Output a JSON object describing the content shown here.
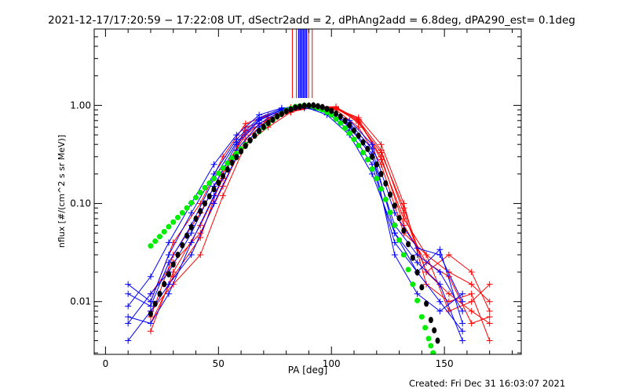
{
  "chart_data": {
    "type": "line",
    "title": "2021-12-17/17:20:59 − 17:22:08 UT, dSectr2add = 2, dPhAng2add = 6.8deg, dPA290_est=  0.1deg",
    "xlabel": "PA [deg]",
    "ylabel": "nflux [#/(cm^2 s sr MeV)]",
    "footer": "Created: Fri Dec 31 16:03:07 2021",
    "xlim": [
      -5,
      184
    ],
    "ylim": [
      0.0029,
      6
    ],
    "yscale": "log",
    "x_ticks": [
      {
        "v": 0,
        "label": "0"
      },
      {
        "v": 50,
        "label": "50"
      },
      {
        "v": 100,
        "label": "100"
      },
      {
        "v": 150,
        "label": "150"
      }
    ],
    "y_ticks": [
      {
        "v": 0.01,
        "label": "0.01"
      },
      {
        "v": 0.1,
        "label": "0.10"
      },
      {
        "v": 1,
        "label": "1.00"
      }
    ],
    "colors": {
      "red": "#ff0000",
      "blue": "#0000ff",
      "green": "#00ee00",
      "black": "#000000"
    },
    "vertical_markers": {
      "red": [
        82.7,
        84.5,
        89.9,
        91.5
      ],
      "blue": [
        85.5,
        86.2,
        86.9,
        87.6,
        88.3,
        89.0
      ]
    },
    "blue_pa": [
      10,
      20,
      28,
      38,
      48,
      58,
      68,
      78,
      88,
      98,
      108,
      118,
      128,
      138,
      148,
      158
    ],
    "blue_series": [
      [
        0.006,
        0.012,
        0.02,
        0.05,
        0.15,
        0.4,
        0.7,
        0.9,
        1.0,
        0.9,
        0.6,
        0.3,
        0.06,
        0.03,
        0.02,
        0.008
      ],
      [
        0.015,
        0.01,
        0.03,
        0.08,
        0.2,
        0.45,
        0.75,
        0.92,
        0.98,
        0.85,
        0.55,
        0.25,
        0.04,
        0.02,
        0.01,
        0.005
      ],
      [
        0.004,
        0.008,
        0.015,
        0.03,
        0.1,
        0.3,
        0.6,
        0.85,
        0.95,
        0.88,
        0.62,
        0.32,
        0.03,
        0.012,
        0.008,
        0.012
      ],
      [
        0.009,
        0.018,
        0.04,
        0.1,
        0.25,
        0.5,
        0.8,
        0.94,
        0.97,
        0.8,
        0.5,
        0.2,
        0.05,
        0.025,
        0.015,
        0.004
      ],
      [
        0.007,
        0.006,
        0.012,
        0.04,
        0.12,
        0.35,
        0.65,
        0.88,
        0.96,
        0.9,
        0.7,
        0.4,
        0.08,
        0.035,
        0.03,
        0.01
      ],
      [
        0.012,
        0.009,
        0.025,
        0.06,
        0.18,
        0.42,
        0.72,
        0.9,
        0.94,
        0.86,
        0.66,
        0.36,
        0.05,
        0.02,
        0.034,
        0.006
      ]
    ],
    "red_pa": [
      20,
      30,
      42,
      52,
      62,
      72,
      82,
      92,
      102,
      112,
      122,
      132,
      142,
      152,
      162,
      170
    ],
    "red_series": [
      [
        0.007,
        0.03,
        0.08,
        0.22,
        0.5,
        0.75,
        0.9,
        0.97,
        0.95,
        0.7,
        0.35,
        0.08,
        0.02,
        0.012,
        0.008,
        0.006
      ],
      [
        0.005,
        0.02,
        0.06,
        0.18,
        0.6,
        0.7,
        0.95,
        1.0,
        0.9,
        0.6,
        0.25,
        0.05,
        0.03,
        0.02,
        0.015,
        0.01
      ],
      [
        0.01,
        0.04,
        0.1,
        0.3,
        0.65,
        0.8,
        0.88,
        0.96,
        0.92,
        0.75,
        0.4,
        0.1,
        0.015,
        0.01,
        0.012,
        0.004
      ],
      [
        0.008,
        0.015,
        0.03,
        0.12,
        0.4,
        0.6,
        0.85,
        0.99,
        0.93,
        0.68,
        0.3,
        0.06,
        0.025,
        0.018,
        0.006,
        0.007
      ],
      [
        0.012,
        0.025,
        0.05,
        0.15,
        0.45,
        0.72,
        0.9,
        0.98,
        0.96,
        0.72,
        0.28,
        0.07,
        0.03,
        0.008,
        0.01,
        0.015
      ],
      [
        0.006,
        0.018,
        0.045,
        0.2,
        0.55,
        0.68,
        0.86,
        0.95,
        0.97,
        0.66,
        0.33,
        0.09,
        0.02,
        0.03,
        0.02,
        0.008
      ]
    ],
    "green_fit": {
      "x": [
        20,
        24,
        28,
        32,
        36,
        40,
        44,
        48,
        52,
        56,
        60,
        64,
        68,
        72,
        76,
        80,
        84,
        88,
        92,
        96,
        100,
        104,
        108,
        112,
        116,
        120,
        124,
        128,
        132,
        136,
        140,
        143,
        145
      ],
      "y": [
        0.037,
        0.046,
        0.058,
        0.072,
        0.09,
        0.115,
        0.145,
        0.18,
        0.23,
        0.29,
        0.36,
        0.44,
        0.54,
        0.65,
        0.77,
        0.89,
        0.97,
        1.0,
        0.97,
        0.9,
        0.8,
        0.66,
        0.52,
        0.39,
        0.28,
        0.18,
        0.11,
        0.06,
        0.03,
        0.015,
        0.007,
        0.0042,
        0.003
      ]
    },
    "black_fit": {
      "x": [
        20,
        24,
        28,
        32,
        36,
        40,
        44,
        48,
        52,
        56,
        60,
        64,
        68,
        72,
        76,
        80,
        84,
        88,
        92,
        96,
        100,
        104,
        108,
        112,
        116,
        120,
        124,
        128,
        132,
        136,
        140,
        144,
        147
      ],
      "y": [
        0.0075,
        0.012,
        0.019,
        0.03,
        0.047,
        0.07,
        0.1,
        0.14,
        0.19,
        0.26,
        0.34,
        0.44,
        0.55,
        0.66,
        0.77,
        0.87,
        0.95,
        0.99,
        1.0,
        0.96,
        0.88,
        0.77,
        0.63,
        0.49,
        0.36,
        0.25,
        0.16,
        0.095,
        0.053,
        0.028,
        0.014,
        0.0065,
        0.004
      ]
    }
  }
}
